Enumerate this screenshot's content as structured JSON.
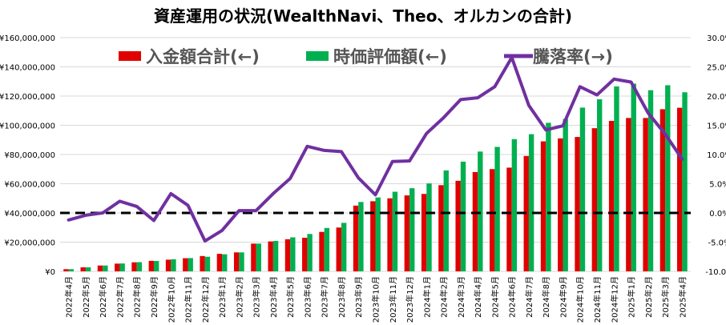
{
  "chart_data": {
    "type": "bar+line",
    "title": "資産運用の状況(WealthNavi、Theo、オルカンの合計)",
    "categories": [
      "2022年4月",
      "2022年5月",
      "2022年6月",
      "2022年7月",
      "2022年8月",
      "2022年9月",
      "2022年10月",
      "2022年11月",
      "2022年12月",
      "2023年1月",
      "2023年2月",
      "2023年3月",
      "2023年4月",
      "2023年5月",
      "2023年6月",
      "2023年7月",
      "2023年8月",
      "2023年9月",
      "2023年10月",
      "2023年11月",
      "2023年12月",
      "2024年1月",
      "2024年2月",
      "2024年3月",
      "2024年4月",
      "2024年5月",
      "2024年6月",
      "2024年7月",
      "2024年8月",
      "2024年9月",
      "2024年10月",
      "2024年11月",
      "2024年12月",
      "2025年1月",
      "2025年2月",
      "2025年3月",
      "2025年4月"
    ],
    "series": [
      {
        "name": "入金額合計(←)",
        "type": "bar",
        "axis": "left",
        "color": "#e00000",
        "values": [
          1500000,
          2800000,
          4000000,
          5300000,
          6200000,
          7200000,
          8000000,
          9000000,
          10500000,
          12000000,
          13000000,
          19000000,
          20500000,
          22000000,
          23000000,
          27000000,
          30000000,
          45000000,
          48000000,
          50000000,
          52000000,
          53000000,
          59000000,
          62000000,
          68000000,
          70000000,
          71000000,
          79000000,
          89000000,
          91000000,
          92000000,
          98000000,
          103000000,
          105000000,
          105000000,
          111000000,
          112000000
        ]
      },
      {
        "name": "時価評価額(←)",
        "type": "bar",
        "axis": "left",
        "color": "#00b050",
        "values": [
          1500000,
          2800000,
          4000000,
          5400000,
          6300000,
          7100000,
          8300000,
          9100000,
          10000000,
          11700000,
          13000000,
          19000000,
          20800000,
          23300000,
          25600000,
          29700000,
          33200000,
          47500000,
          50600000,
          54500000,
          56900000,
          60200000,
          69100000,
          75100000,
          82000000,
          85200000,
          90500000,
          93900000,
          101700000,
          104300000,
          112100000,
          117800000,
          126600000,
          128500000,
          124000000,
          127400000,
          122600000
        ]
      },
      {
        "name": "騰落率(→)",
        "type": "line",
        "axis": "right",
        "color": "#7030a0",
        "values": [
          -1.2,
          -0.4,
          0.0,
          2.0,
          1.1,
          -1.3,
          3.3,
          1.3,
          -4.8,
          -3.0,
          0.4,
          0.4,
          3.3,
          5.9,
          11.4,
          10.7,
          10.5,
          6.0,
          3.1,
          8.8,
          8.9,
          13.6,
          16.3,
          19.4,
          19.7,
          21.6,
          26.6,
          18.4,
          14.2,
          14.9,
          21.6,
          20.2,
          22.9,
          22.4,
          17.1,
          13.5,
          9.2
        ]
      }
    ],
    "ylim_left": [
      0,
      160000000
    ],
    "left_ticks": [
      "¥0",
      "¥20,000,000",
      "¥40,000,000",
      "¥60,000,000",
      "¥80,000,000",
      "¥100,000,000",
      "¥120,000,000",
      "¥140,000,000",
      "¥160,000,000"
    ],
    "ylim_right": [
      -10.0,
      30.0
    ],
    "right_ticks": [
      "-10.0%",
      "-5.0%",
      "0.0%",
      "5.0%",
      "10.0%",
      "15.0%",
      "20.0%",
      "25.0%",
      "30.0%"
    ],
    "reference_line": {
      "axis": "right",
      "value": 0.0,
      "style": "dashed",
      "color": "#000000"
    },
    "grid": true,
    "legend_position": "top",
    "xlabel": "",
    "ylabel_left": "",
    "ylabel_right": ""
  }
}
